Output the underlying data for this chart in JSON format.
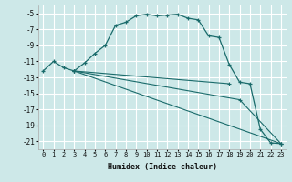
{
  "xlabel": "Humidex (Indice chaleur)",
  "ylabel": "",
  "bg_color": "#cde8e8",
  "grid_color": "#ffffff",
  "line_color": "#1a6b6b",
  "xlim": [
    -0.5,
    23.5
  ],
  "ylim": [
    -22.0,
    -4.0
  ],
  "xticks": [
    0,
    1,
    2,
    3,
    4,
    5,
    6,
    7,
    8,
    9,
    10,
    11,
    12,
    13,
    14,
    15,
    16,
    17,
    18,
    19,
    20,
    21,
    22,
    23
  ],
  "yticks": [
    -21,
    -19,
    -17,
    -15,
    -13,
    -11,
    -9,
    -7,
    -5
  ],
  "line1_x": [
    0,
    1,
    2,
    3,
    4,
    5,
    6,
    7,
    8,
    9,
    10,
    11,
    12,
    13,
    14,
    15,
    16,
    17,
    18,
    19,
    20,
    21,
    22,
    23
  ],
  "line1_y": [
    -12.2,
    -11.0,
    -11.8,
    -12.2,
    -11.2,
    -10.0,
    -9.0,
    -6.5,
    -6.1,
    -5.3,
    -5.1,
    -5.3,
    -5.2,
    -5.1,
    -5.6,
    -5.8,
    -7.8,
    -8.0,
    -11.4,
    -13.6,
    -13.8,
    -19.5,
    -21.2,
    -21.3
  ],
  "line2_x": [
    3,
    18
  ],
  "line2_y": [
    -12.2,
    -13.8
  ],
  "line3_x": [
    3,
    23
  ],
  "line3_y": [
    -12.2,
    -21.3
  ],
  "line4_x": [
    3,
    19,
    23
  ],
  "line4_y": [
    -12.2,
    -15.8,
    -21.3
  ]
}
